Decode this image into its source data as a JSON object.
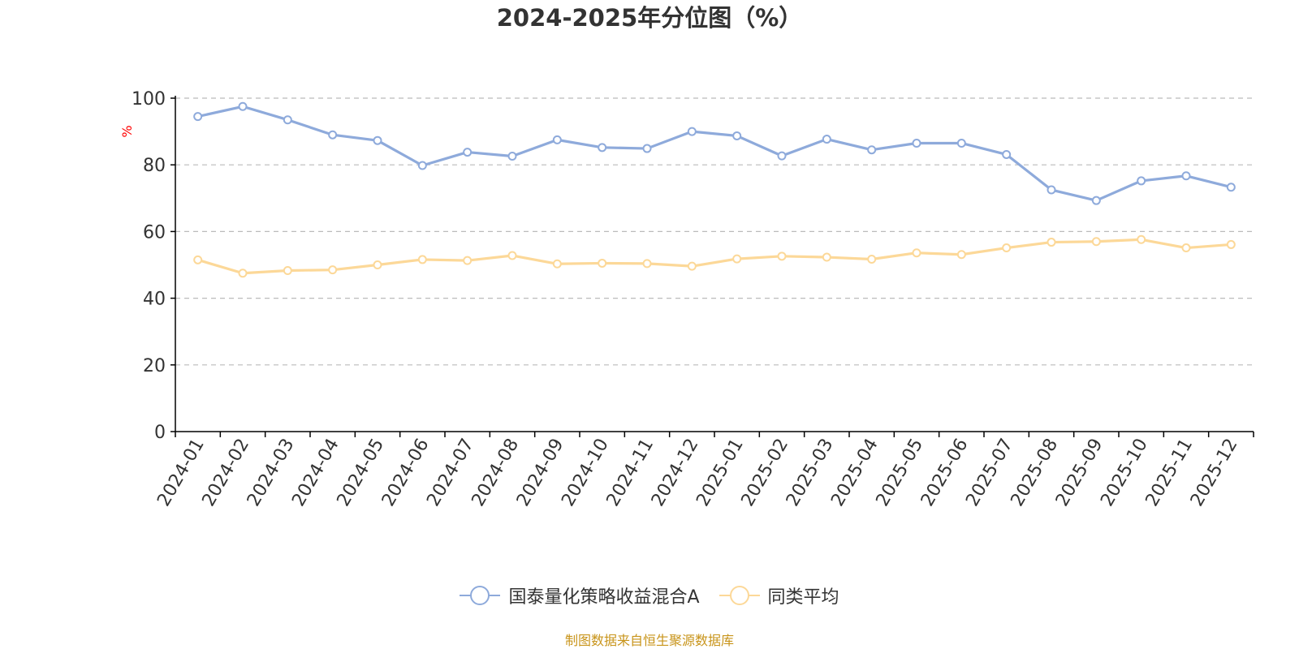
{
  "chart_data": {
    "type": "line",
    "title": "2024-2025年分位图（%）",
    "ylabel": "%",
    "xlabel": "",
    "ylim": [
      0,
      100
    ],
    "yticks": [
      0,
      20,
      40,
      60,
      80,
      100
    ],
    "grid": true,
    "legend_position": "bottom",
    "categories": [
      "2024-01",
      "2024-02",
      "2024-03",
      "2024-04",
      "2024-05",
      "2024-06",
      "2024-07",
      "2024-08",
      "2024-09",
      "2024-10",
      "2024-11",
      "2024-12",
      "2025-01",
      "2025-02",
      "2025-03",
      "2025-04",
      "2025-05",
      "2025-06",
      "2025-07",
      "2025-08",
      "2025-09",
      "2025-10",
      "2025-11",
      "2025-12"
    ],
    "series": [
      {
        "name": "国泰量化策略收益混合A",
        "color": "#8eaadb",
        "values": [
          94.5,
          97.5,
          93.5,
          89.0,
          87.3,
          79.8,
          83.8,
          82.6,
          87.5,
          85.2,
          84.9,
          90.0,
          88.7,
          82.7,
          87.7,
          84.5,
          86.5,
          86.5,
          83.1,
          72.5,
          69.3,
          75.2,
          76.7,
          73.3
        ]
      },
      {
        "name": "同类平均",
        "color": "#fcd898",
        "values": [
          51.5,
          47.5,
          48.3,
          48.5,
          50.0,
          51.6,
          51.3,
          52.8,
          50.3,
          50.5,
          50.4,
          49.6,
          51.8,
          52.6,
          52.3,
          51.7,
          53.6,
          53.1,
          55.1,
          56.8,
          57.0,
          57.6,
          55.1,
          56.1
        ]
      }
    ]
  },
  "source_text": "制图数据来自恒生聚源数据库",
  "colors": {
    "axis": "#000000",
    "tick_label": "#333333",
    "grid": "#bbbbbb",
    "ylabel": "#ff0000",
    "source": "#c8941a"
  }
}
